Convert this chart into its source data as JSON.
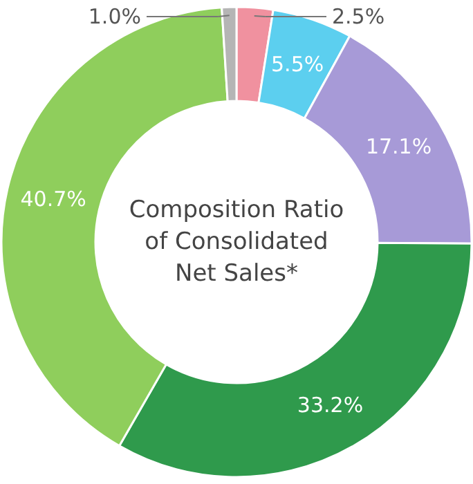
{
  "chart_data": {
    "type": "donut",
    "title": "Composition Ratio of Consolidated Net Sales*",
    "categories": [
      null,
      null,
      null,
      null,
      null,
      null
    ],
    "values": [
      2.5,
      5.5,
      17.1,
      33.2,
      40.7,
      1.0
    ],
    "colors": [
      "#f0919f",
      "#5ccfef",
      "#a79ad7",
      "#2f9a4c",
      "#8fce5c",
      "#b5b5b5"
    ],
    "value_labels": [
      "2.5%",
      "5.5%",
      "17.1%",
      "33.2%",
      "40.7%",
      "1.0%"
    ]
  }
}
